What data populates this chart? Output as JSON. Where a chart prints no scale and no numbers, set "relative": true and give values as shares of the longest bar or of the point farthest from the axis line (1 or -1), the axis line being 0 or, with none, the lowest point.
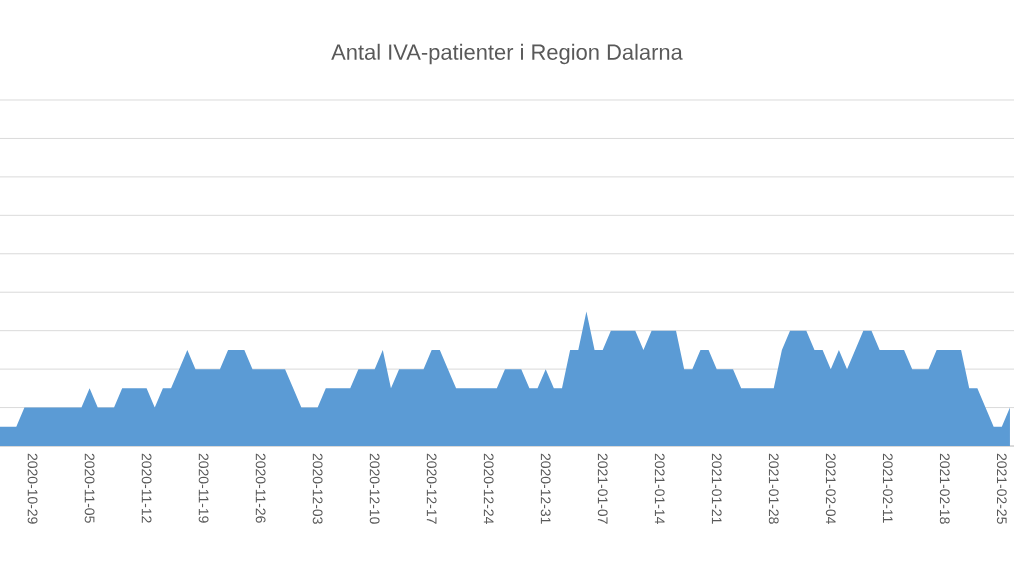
{
  "chart_data": {
    "type": "area",
    "title": "Antal IVA-patienter i Region Dalarna",
    "relative": true,
    "grid": "y",
    "color": "#5b9bd5",
    "categories": [
      null,
      null,
      null,
      null,
      "2020-10-29",
      null,
      null,
      null,
      null,
      null,
      null,
      "2020-11-05",
      null,
      null,
      null,
      null,
      null,
      null,
      "2020-11-12",
      null,
      null,
      null,
      null,
      null,
      null,
      "2020-11-19",
      null,
      null,
      null,
      null,
      null,
      null,
      "2020-11-26",
      null,
      null,
      null,
      null,
      null,
      null,
      "2020-12-03",
      null,
      null,
      null,
      null,
      null,
      null,
      "2020-12-10",
      null,
      null,
      null,
      null,
      null,
      null,
      "2020-12-17",
      null,
      null,
      null,
      null,
      null,
      null,
      "2020-12-24",
      null,
      null,
      null,
      null,
      null,
      null,
      "2020-12-31",
      null,
      null,
      null,
      null,
      null,
      null,
      "2021-01-07",
      null,
      null,
      null,
      null,
      null,
      null,
      "2021-01-14",
      null,
      null,
      null,
      null,
      null,
      null,
      "2021-01-21",
      null,
      null,
      null,
      null,
      null,
      null,
      "2021-01-28",
      null,
      null,
      null,
      null,
      null,
      null,
      "2021-02-04",
      null,
      null,
      null,
      null,
      null,
      null,
      "2021-02-11",
      null,
      null,
      null,
      null,
      null,
      null,
      "2021-02-18",
      null,
      null,
      null,
      null,
      null,
      null,
      "2021-02-25",
      null
    ],
    "values": [
      0.143,
      0.143,
      0.143,
      0.286,
      0.286,
      0.286,
      0.286,
      0.286,
      0.286,
      0.286,
      0.286,
      0.429,
      0.286,
      0.286,
      0.286,
      0.429,
      0.429,
      0.429,
      0.429,
      0.286,
      0.429,
      0.429,
      0.571,
      0.714,
      0.571,
      0.571,
      0.571,
      0.571,
      0.714,
      0.714,
      0.714,
      0.571,
      0.571,
      0.571,
      0.571,
      0.571,
      0.429,
      0.286,
      0.286,
      0.286,
      0.429,
      0.429,
      0.429,
      0.429,
      0.571,
      0.571,
      0.571,
      0.714,
      0.429,
      0.571,
      0.571,
      0.571,
      0.571,
      0.714,
      0.714,
      0.571,
      0.429,
      0.429,
      0.429,
      0.429,
      0.429,
      0.429,
      0.571,
      0.571,
      0.571,
      0.429,
      0.429,
      0.571,
      0.429,
      0.429,
      0.714,
      0.714,
      1,
      0.714,
      0.714,
      0.857,
      0.857,
      0.857,
      0.857,
      0.714,
      0.857,
      0.857,
      0.857,
      0.857,
      0.571,
      0.571,
      0.714,
      0.714,
      0.571,
      0.571,
      0.571,
      0.429,
      0.429,
      0.429,
      0.429,
      0.429,
      0.714,
      0.857,
      0.857,
      0.857,
      0.714,
      0.714,
      0.571,
      0.714,
      0.571,
      0.714,
      0.857,
      0.857,
      0.714,
      0.714,
      0.714,
      0.714,
      0.571,
      0.571,
      0.571,
      0.714,
      0.714,
      0.714,
      0.714,
      0.429,
      0.429,
      0.286,
      0.143,
      0.143,
      0.286
    ]
  }
}
